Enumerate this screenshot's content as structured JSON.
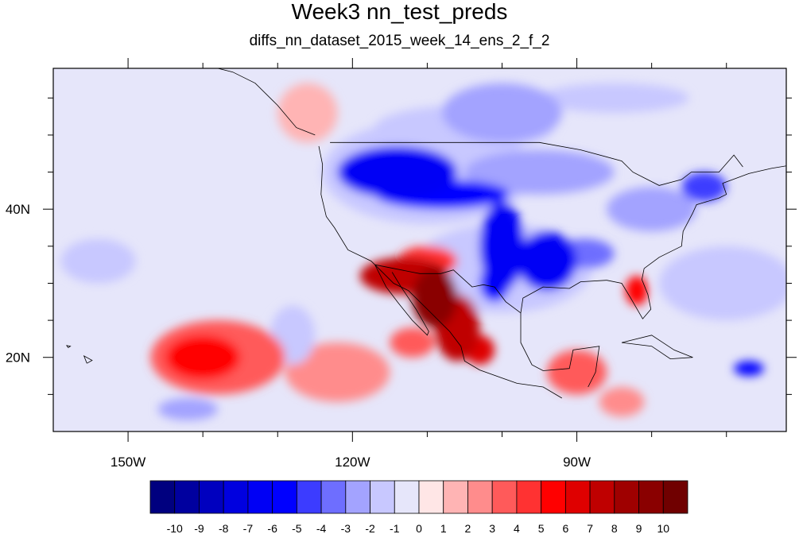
{
  "title": "Week3 nn_test_preds",
  "subtitle": "diffs_nn_dataset_2015_week_14_ens_2_f_2",
  "map": {
    "projection": "cylindrical-equidistant",
    "lon_range": [
      -160,
      -62
    ],
    "lat_range": [
      10,
      59
    ],
    "x_tick_labels": [
      {
        "lon": -150,
        "label": "150W"
      },
      {
        "lon": -120,
        "label": "120W"
      },
      {
        "lon": -90,
        "label": "90W"
      }
    ],
    "y_tick_labels": [
      {
        "lat": 20,
        "label": "20N"
      },
      {
        "lat": 40,
        "label": "40N"
      }
    ],
    "minor_lon_ticks": [
      -150,
      -140,
      -130,
      -120,
      -110,
      -100,
      -90,
      -80,
      -70
    ],
    "minor_lat_ticks": [
      15,
      20,
      25,
      30,
      35,
      40,
      45,
      50,
      55
    ],
    "background_color": "#e6e6fa",
    "anomalies": [
      {
        "lon": -113,
        "lat": 31,
        "rlon": 6,
        "rlat": 2.5,
        "value": 7
      },
      {
        "lon": -109,
        "lat": 28,
        "rlon": 3,
        "rlat": 4,
        "value": 9
      },
      {
        "lon": -106,
        "lat": 24,
        "rlon": 3,
        "rlat": 4.5,
        "value": 7
      },
      {
        "lon": -103,
        "lat": 21,
        "rlon": 2,
        "rlat": 2,
        "value": 6
      },
      {
        "lon": -112,
        "lat": 22,
        "rlon": 3,
        "rlat": 2,
        "value": 3
      },
      {
        "lon": -110,
        "lat": 33,
        "rlon": 4,
        "rlat": 2,
        "value": 4
      },
      {
        "lon": -114,
        "lat": 45,
        "rlon": 8,
        "rlat": 3.5,
        "value": -7
      },
      {
        "lon": -108,
        "lat": 42,
        "rlon": 9,
        "rlat": 2,
        "value": -6
      },
      {
        "lon": -100,
        "lat": 35,
        "rlon": 3,
        "rlat": 6,
        "value": -7
      },
      {
        "lon": -94,
        "lat": 33,
        "rlon": 4,
        "rlat": 4,
        "value": -7
      },
      {
        "lon": -101,
        "lat": 30,
        "rlon": 2,
        "rlat": 2.5,
        "value": -6
      },
      {
        "lon": -89,
        "lat": 34,
        "rlon": 4,
        "rlat": 2,
        "value": -4
      },
      {
        "lon": -95,
        "lat": 45,
        "rlon": 10,
        "rlat": 3,
        "value": -3
      },
      {
        "lon": -80,
        "lat": 40,
        "rlon": 6,
        "rlat": 3,
        "value": -3
      },
      {
        "lon": -73,
        "lat": 43,
        "rlon": 3,
        "rlat": 2,
        "value": -5
      },
      {
        "lon": -105,
        "lat": 51,
        "rlon": 12,
        "rlat": 3,
        "value": -2
      },
      {
        "lon": -70,
        "lat": 30,
        "rlon": 9,
        "rlat": 5,
        "value": -2
      },
      {
        "lon": -82,
        "lat": 29,
        "rlon": 1.5,
        "rlat": 2,
        "value": 5
      },
      {
        "lon": -140,
        "lat": 20,
        "rlon": 5,
        "rlat": 3,
        "value": 5
      },
      {
        "lon": -138,
        "lat": 20,
        "rlon": 9,
        "rlat": 5,
        "value": 3
      },
      {
        "lon": -122,
        "lat": 18,
        "rlon": 7,
        "rlat": 4,
        "value": 2
      },
      {
        "lon": -90,
        "lat": 18,
        "rlon": 4,
        "rlat": 3,
        "value": 3
      },
      {
        "lon": -110,
        "lat": 45,
        "rlon": 14,
        "rlat": 7,
        "value": -2
      },
      {
        "lon": -100,
        "lat": 32,
        "rlon": 12,
        "rlat": 6,
        "value": -2
      },
      {
        "lon": -128,
        "lat": 23,
        "rlon": 3,
        "rlat": 4,
        "value": -2
      },
      {
        "lon": -67,
        "lat": 18.5,
        "rlon": 2,
        "rlat": 1,
        "value": -6
      },
      {
        "lon": -154,
        "lat": 33,
        "rlon": 5,
        "rlat": 3,
        "value": -2
      },
      {
        "lon": -142,
        "lat": 13,
        "rlon": 4,
        "rlat": 1.5,
        "value": -3
      },
      {
        "lon": -84,
        "lat": 14,
        "rlon": 3,
        "rlat": 2,
        "value": 2
      },
      {
        "lon": -100,
        "lat": 53,
        "rlon": 8,
        "rlat": 4,
        "value": -3
      },
      {
        "lon": -85,
        "lat": 55,
        "rlon": 10,
        "rlat": 2,
        "value": -2
      },
      {
        "lon": -126,
        "lat": 53,
        "rlon": 4,
        "rlat": 4,
        "value": 1
      }
    ]
  },
  "colorbar": {
    "levels": [
      "-10",
      "-9",
      "-8",
      "-7",
      "-6",
      "-5",
      "-4",
      "-3",
      "-2",
      "-1",
      "0",
      "1",
      "2",
      "3",
      "4",
      "5",
      "6",
      "7",
      "8",
      "9",
      "10"
    ],
    "colors": [
      "#00007f",
      "#00009f",
      "#0000bf",
      "#0000df",
      "#0000f5",
      "#0000ff",
      "#3c3cff",
      "#6e6eff",
      "#a3a3ff",
      "#c8c8ff",
      "#e6e6fa",
      "#ffe6e6",
      "#ffb4b4",
      "#ff8c8c",
      "#ff5a5a",
      "#ff3232",
      "#ff0000",
      "#df0000",
      "#bf0000",
      "#9f0000",
      "#8a0000",
      "#700000"
    ]
  }
}
